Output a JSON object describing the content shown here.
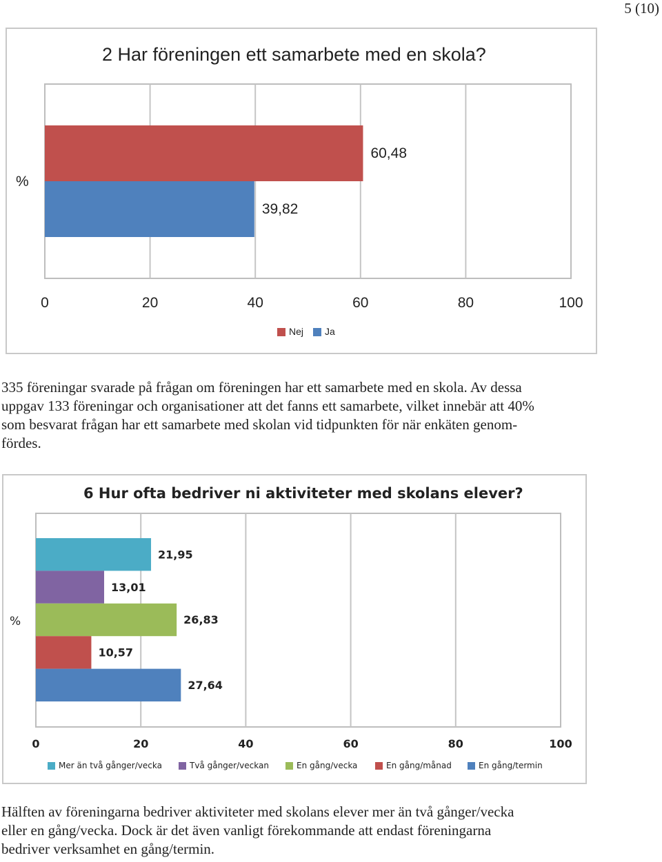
{
  "page_number": "5 (10)",
  "paragraph1": {
    "lines": [
      "335 föreningar svarade på frågan om föreningen har ett samarbete med en skola. Av dessa",
      "uppgav 133 föreningar och organisationer att det fanns ett samarbete, vilket innebär att 40%",
      "som besvarat frågan har ett samarbete med skolan vid tidpunkten för när enkäten genom-",
      "fördes."
    ]
  },
  "paragraph2": {
    "lines": [
      "Hälften av föreningarna bedriver aktiviteter med skolans elever mer än två gånger/vecka",
      "eller en gång/vecka. Dock är det även vanligt förekommande att endast föreningarna",
      "bedriver verksamhet en gång/termin."
    ]
  },
  "chart_data": [
    {
      "type": "bar",
      "orientation": "horizontal",
      "title": "2 Har föreningen ett samarbete med en skola?",
      "ylabel": "%",
      "xlim": [
        0,
        100
      ],
      "x_ticks": [
        "0",
        "20",
        "40",
        "60",
        "80",
        "100"
      ],
      "grid": true,
      "legend_position": "bottom",
      "series": [
        {
          "name": "Nej",
          "value": 60.48,
          "label": "60,48",
          "color": "#c0504d"
        },
        {
          "name": "Ja",
          "value": 39.82,
          "label": "39,82",
          "color": "#4f81bd"
        }
      ]
    },
    {
      "type": "bar",
      "orientation": "horizontal",
      "title": "6 Hur ofta bedriver ni aktiviteter med skolans elever?",
      "ylabel": "%",
      "xlim": [
        0,
        100
      ],
      "x_ticks": [
        "0",
        "20",
        "40",
        "60",
        "80",
        "100"
      ],
      "grid": true,
      "legend_position": "bottom",
      "series": [
        {
          "name": "Mer än två gånger/vecka",
          "value": 21.95,
          "label": "21,95",
          "color": "#4bacc6"
        },
        {
          "name": "Två gånger/veckan",
          "value": 13.01,
          "label": "13,01",
          "color": "#8064a2"
        },
        {
          "name": "En gång/vecka",
          "value": 26.83,
          "label": "26,83",
          "color": "#9bbb59"
        },
        {
          "name": "En gång/månad",
          "value": 10.57,
          "label": "10,57",
          "color": "#c0504d"
        },
        {
          "name": "En gång/termin",
          "value": 27.64,
          "label": "27,64",
          "color": "#4f81bd"
        }
      ]
    }
  ]
}
